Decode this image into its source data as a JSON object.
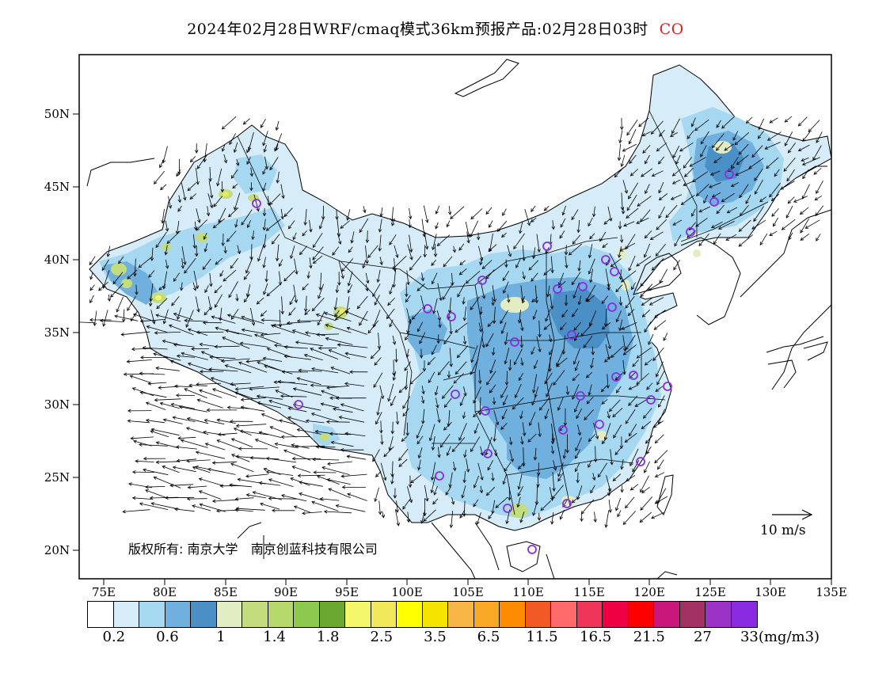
{
  "title": {
    "text": "2024年02月28日WRF/cmaq模式36km预报产品:02月28日03时",
    "species": "CO"
  },
  "axes": {
    "lat_labels": [
      "50N",
      "45N",
      "40N",
      "35N",
      "30N",
      "25N",
      "20N"
    ],
    "lon_labels": [
      "75E",
      "80E",
      "85E",
      "90E",
      "95E",
      "100E",
      "105E",
      "110E",
      "115E",
      "120E",
      "125E",
      "130E",
      "135E"
    ]
  },
  "colorbar": {
    "colors": [
      "#ffffff",
      "#d6ecf8",
      "#a6d8f2",
      "#6fb0de",
      "#4a8fc6",
      "#e3edc4",
      "#c3dd7e",
      "#b6d96a",
      "#8ec94f",
      "#6aa82f",
      "#f4f76a",
      "#f2e85c",
      "#ffff00",
      "#f7e300",
      "#f7b645",
      "#f9a825",
      "#ff8c00",
      "#f15a24",
      "#ff6b6b",
      "#f0355a",
      "#ee0043",
      "#ff0000",
      "#c9177b",
      "#a33163",
      "#9b33c7",
      "#8a2be2"
    ],
    "labels": [
      "0.2",
      "0.6",
      "1",
      "1.4",
      "1.8",
      "2.5",
      "3.5",
      "6.5",
      "11.5",
      "16.5",
      "21.5",
      "27",
      "33(mg/m3)"
    ]
  },
  "copyright": {
    "prefix": "版权所有:",
    "org1": "南京大学",
    "org2": "南京创蓝科技有限公司"
  },
  "wind_reference": "10 m/s"
}
